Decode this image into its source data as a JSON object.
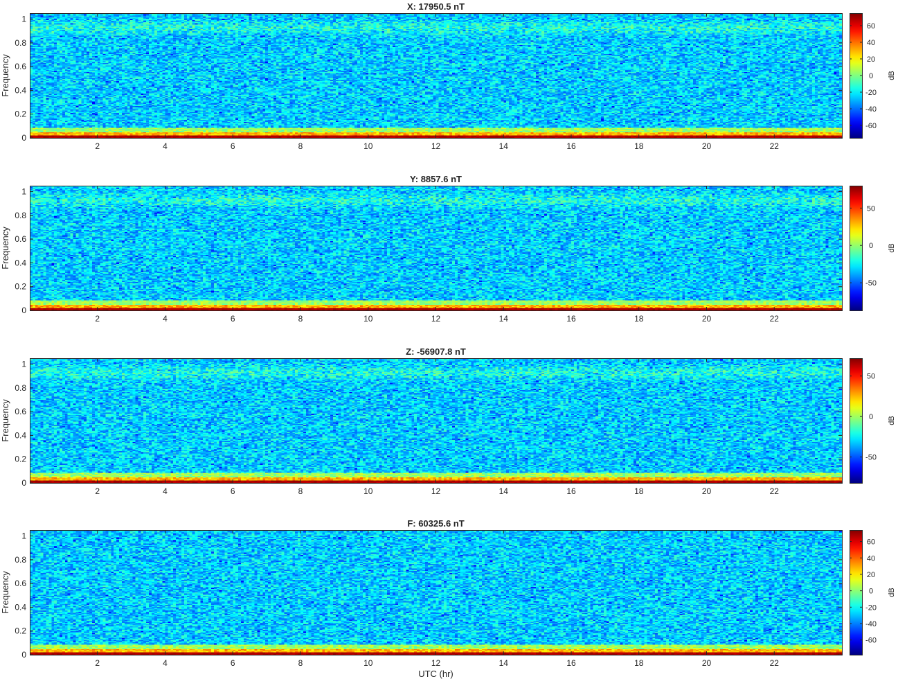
{
  "chart_data": {
    "type": "heatmap",
    "panels": [
      {
        "title": "X: 17950.5 nT",
        "ylabel": "Frequency",
        "x_ticks": [
          2,
          4,
          6,
          8,
          10,
          12,
          14,
          16,
          18,
          20,
          22
        ],
        "y_ticks": [
          0,
          0.2,
          0.4,
          0.6,
          0.8,
          1
        ],
        "xlim": [
          0,
          24
        ],
        "ylim": [
          0,
          1.05
        ],
        "colorbar": {
          "label": "dB",
          "range": [
            -75,
            75
          ],
          "ticks": [
            -60,
            -40,
            -20,
            0,
            20,
            40,
            60
          ]
        }
      },
      {
        "title": "Y: 8857.6 nT",
        "ylabel": "Frequency",
        "x_ticks": [
          2,
          4,
          6,
          8,
          10,
          12,
          14,
          16,
          18,
          20,
          22
        ],
        "y_ticks": [
          0,
          0.2,
          0.4,
          0.6,
          0.8,
          1
        ],
        "xlim": [
          0,
          24
        ],
        "ylim": [
          0,
          1.05
        ],
        "colorbar": {
          "label": "dB",
          "range": [
            -87,
            80
          ],
          "ticks": [
            -50,
            0,
            50
          ]
        }
      },
      {
        "title": "Z: -56907.8 nT",
        "ylabel": "Frequency",
        "x_ticks": [
          2,
          4,
          6,
          8,
          10,
          12,
          14,
          16,
          18,
          20,
          22
        ],
        "y_ticks": [
          0,
          0.2,
          0.4,
          0.6,
          0.8,
          1
        ],
        "xlim": [
          0,
          24
        ],
        "ylim": [
          0,
          1.05
        ],
        "colorbar": {
          "label": "dB",
          "range": [
            -82,
            72
          ],
          "ticks": [
            -50,
            0,
            50
          ]
        }
      },
      {
        "title": "F: 60325.6 nT",
        "ylabel": "Frequency",
        "xlabel": "UTC (hr)",
        "x_ticks": [
          2,
          4,
          6,
          8,
          10,
          12,
          14,
          16,
          18,
          20,
          22
        ],
        "y_ticks": [
          0,
          0.2,
          0.4,
          0.6,
          0.8,
          1
        ],
        "xlim": [
          0,
          24
        ],
        "ylim": [
          0,
          1.05
        ],
        "colorbar": {
          "label": "dB",
          "range": [
            -78,
            74
          ],
          "ticks": [
            -60,
            -40,
            -20,
            0,
            20,
            40,
            60
          ]
        }
      }
    ],
    "colormap": "jet",
    "grid": false
  }
}
